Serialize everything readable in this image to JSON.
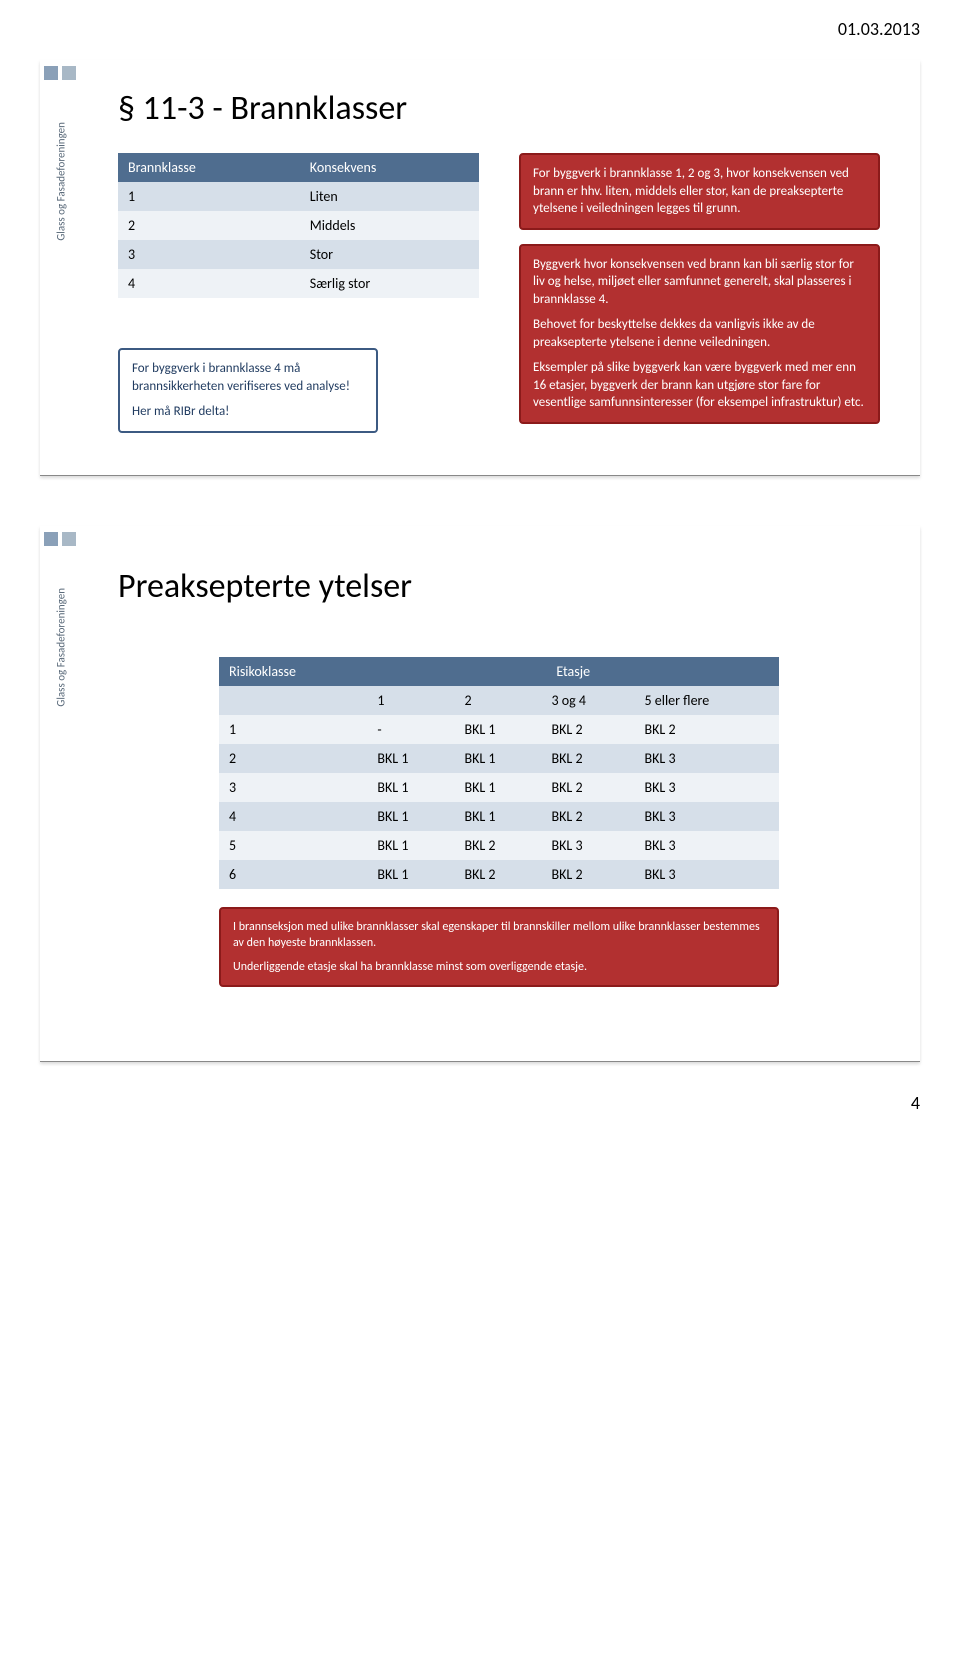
{
  "page": {
    "date": "01.03.2013",
    "number": "4"
  },
  "sidebar": {
    "brand": "Glass og Fasadeforeningen",
    "top_blocks": [
      "#8aa0b8",
      "#a8b8c6"
    ]
  },
  "colors": {
    "table_header_bg": "#4f6d8f",
    "table_row_alt_bg": "#d6dfe9",
    "table_row_bg": "#eef2f6",
    "callout_blue_border": "#3c5a82",
    "callout_blue_bg": "#ffffff",
    "callout_blue_text": "#1f3a5f",
    "callout_red_border": "#8b1a1a",
    "callout_red_bg": "#b23030",
    "callout_red_text": "#ffffff"
  },
  "slide1": {
    "title": "§ 11-3 - Brannklasser",
    "table": {
      "headers": [
        "Brannklasse",
        "Konsekvens"
      ],
      "rows": [
        [
          "1",
          "Liten"
        ],
        [
          "2",
          "Middels"
        ],
        [
          "3",
          "Stor"
        ],
        [
          "4",
          "Særlig stor"
        ]
      ]
    },
    "left_callout": {
      "p1": "For byggverk i brannklasse 4 må brannsikkerheten verifiseres ved analyse!",
      "p2": "Her må RIBr delta!"
    },
    "right_callout1": {
      "p1": "For byggverk i brannklasse 1, 2 og 3, hvor konsekvensen ved brann er hhv. liten, middels eller stor, kan de preaksepterte ytelsene i veiledningen legges til grunn."
    },
    "right_callout2": {
      "p1": "Byggverk hvor konsekvensen ved brann kan bli særlig stor for liv og helse, miljøet eller samfunnet generelt, skal plasseres i brannklasse 4.",
      "p2": "Behovet for beskyttelse dekkes da vanligvis ikke av de preaksepterte ytelsene i denne veiledningen.",
      "p3": "Eksempler på slike byggverk kan være byggverk med mer enn 16 etasjer, byggverk der brann kan utgjøre stor fare for vesentlige samfunnsinteresser (for eksempel infrastruktur) etc."
    }
  },
  "slide2": {
    "title": "Preaksepterte ytelser",
    "table": {
      "header_left": "Risikoklasse",
      "header_right": "Etasje",
      "subheaders": [
        "1",
        "2",
        "3 og 4",
        "5 eller flere"
      ],
      "rows": [
        [
          "1",
          "-",
          "BKL 1",
          "BKL 2",
          "BKL 2"
        ],
        [
          "2",
          "BKL 1",
          "BKL 1",
          "BKL 2",
          "BKL 3"
        ],
        [
          "3",
          "BKL 1",
          "BKL 1",
          "BKL 2",
          "BKL 3"
        ],
        [
          "4",
          "BKL 1",
          "BKL 1",
          "BKL 2",
          "BKL 3"
        ],
        [
          "5",
          "BKL 1",
          "BKL 2",
          "BKL 3",
          "BKL 3"
        ],
        [
          "6",
          "BKL 1",
          "BKL 2",
          "BKL 2",
          "BKL 3"
        ]
      ]
    },
    "callout": {
      "p1": "I brannseksjon med ulike brannklasser skal egenskaper til brannskiller mellom ulike brannklasser bestemmes av den høyeste brannklassen.",
      "p2": "Underliggende etasje skal ha brannklasse minst som overliggende etasje."
    }
  }
}
